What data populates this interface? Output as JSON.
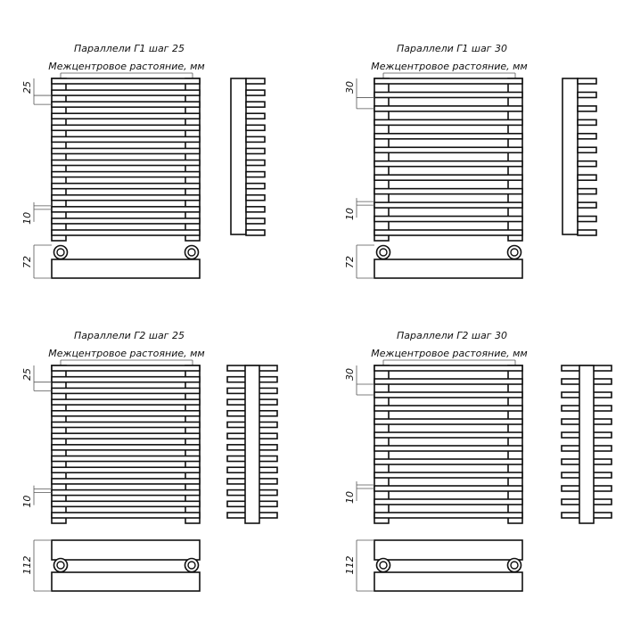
{
  "panels": [
    {
      "title": "Параллели Г1 шаг 25",
      "subtitle": "Межцентровое растояние, мм",
      "pitch_label": "25",
      "gap_label": "10",
      "depth_label": "72",
      "type": "G1",
      "bars": 14
    },
    {
      "title": "Параллели Г1 шаг 30",
      "subtitle": "Межцентровое растояние, мм",
      "pitch_label": "30",
      "gap_label": "10",
      "depth_label": "72",
      "type": "G1",
      "bars": 12
    },
    {
      "title": "Параллели Г2 шаг 25",
      "subtitle": "Межцентровое растояние, мм",
      "pitch_label": "25",
      "gap_label": "10",
      "depth_label": "112",
      "type": "G2",
      "bars": 14
    },
    {
      "title": "Параллели Г2 шаг 30",
      "subtitle": "Межцентровое растояние, мм",
      "pitch_label": "30",
      "gap_label": "10",
      "depth_label": "112",
      "type": "G2",
      "bars": 12
    }
  ],
  "colors": {
    "line": "#111111",
    "dim": "#555555",
    "background": "#ffffff"
  }
}
